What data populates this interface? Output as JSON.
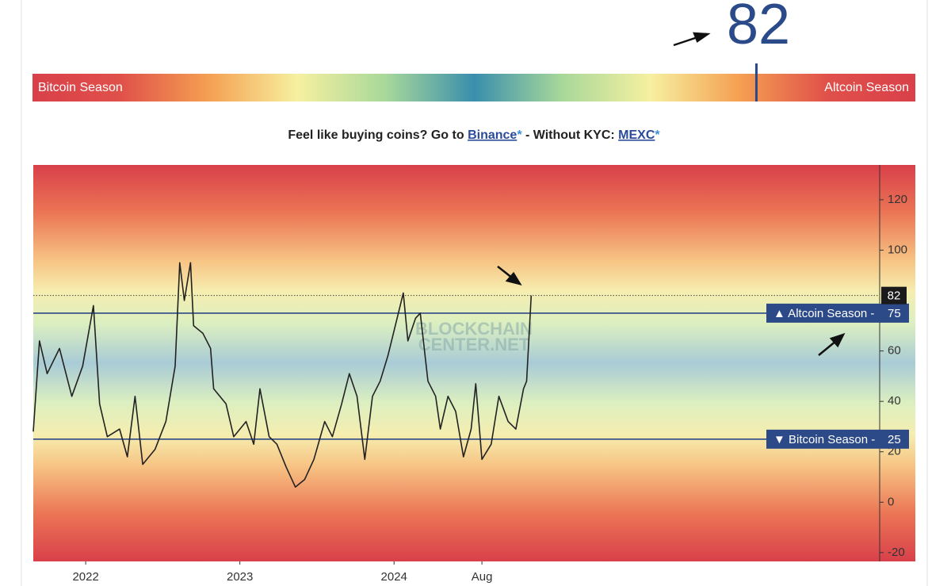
{
  "index_value": 82,
  "scale_bar": {
    "left_label": "Bitcoin Season",
    "right_label": "Altcoin Season"
  },
  "promo": {
    "text1": "Feel like buying coins? Go to ",
    "link1": "Binance",
    "star1": "*",
    "text2": " - Without KYC: ",
    "link2": "MEXC",
    "star2": "*"
  },
  "chart_data": {
    "type": "line",
    "watermark": [
      "BLOCKCHAIN",
      "CENTER.NET"
    ],
    "x": [
      2021.66,
      2021.7,
      2021.75,
      2021.83,
      2021.91,
      2021.98,
      2022.05,
      2022.09,
      2022.14,
      2022.22,
      2022.27,
      2022.32,
      2022.37,
      2022.45,
      2022.52,
      2022.58,
      2022.61,
      2022.64,
      2022.68,
      2022.7,
      2022.76,
      2022.81,
      2022.83,
      2022.91,
      2022.96,
      2023.04,
      2023.09,
      2023.13,
      2023.19,
      2023.24,
      2023.3,
      2023.36,
      2023.42,
      2023.48,
      2023.55,
      2023.6,
      2023.66,
      2023.71,
      2023.76,
      2023.81,
      2023.86,
      2023.91,
      2023.96,
      2024.02,
      2024.06,
      2024.09,
      2024.14,
      2024.17,
      2024.22,
      2024.27,
      2024.3,
      2024.35,
      2024.4,
      2024.45,
      2024.5,
      2024.53,
      2024.57,
      2024.63,
      2024.68,
      2024.74,
      2024.79,
      2024.84,
      2024.86,
      2024.89
    ],
    "series": [
      {
        "color": "#222222",
        "values": [
          28,
          64,
          51,
          61,
          42,
          54,
          78,
          39,
          26,
          29,
          18,
          42,
          15,
          21,
          32,
          54,
          95,
          80,
          95,
          70,
          67,
          61,
          45,
          39,
          26,
          32,
          23,
          45,
          26,
          23,
          14,
          6,
          9,
          17,
          32,
          26,
          39,
          51,
          42,
          17,
          42,
          48,
          58,
          73,
          83,
          64,
          73,
          75,
          48,
          42,
          29,
          42,
          36,
          18,
          29,
          47,
          17,
          23,
          42,
          32,
          29,
          45,
          48,
          82
        ]
      }
    ],
    "xlim": [
      2021.66,
      2027.15
    ],
    "xticks": [
      2022,
      2023,
      2024,
      {
        "value": 2024.57,
        "label": "Aug"
      }
    ],
    "ylim": [
      -23.5,
      133.8
    ],
    "yticks": [
      -20,
      0,
      20,
      40,
      60,
      100,
      120
    ],
    "reference_lines": [
      {
        "value": 75,
        "label": "▲ Altcoin Season -",
        "color": "#2c4a87"
      },
      {
        "value": 25,
        "label": "▼ Bitcoin Season -",
        "color": "#2c4a87"
      }
    ]
  }
}
